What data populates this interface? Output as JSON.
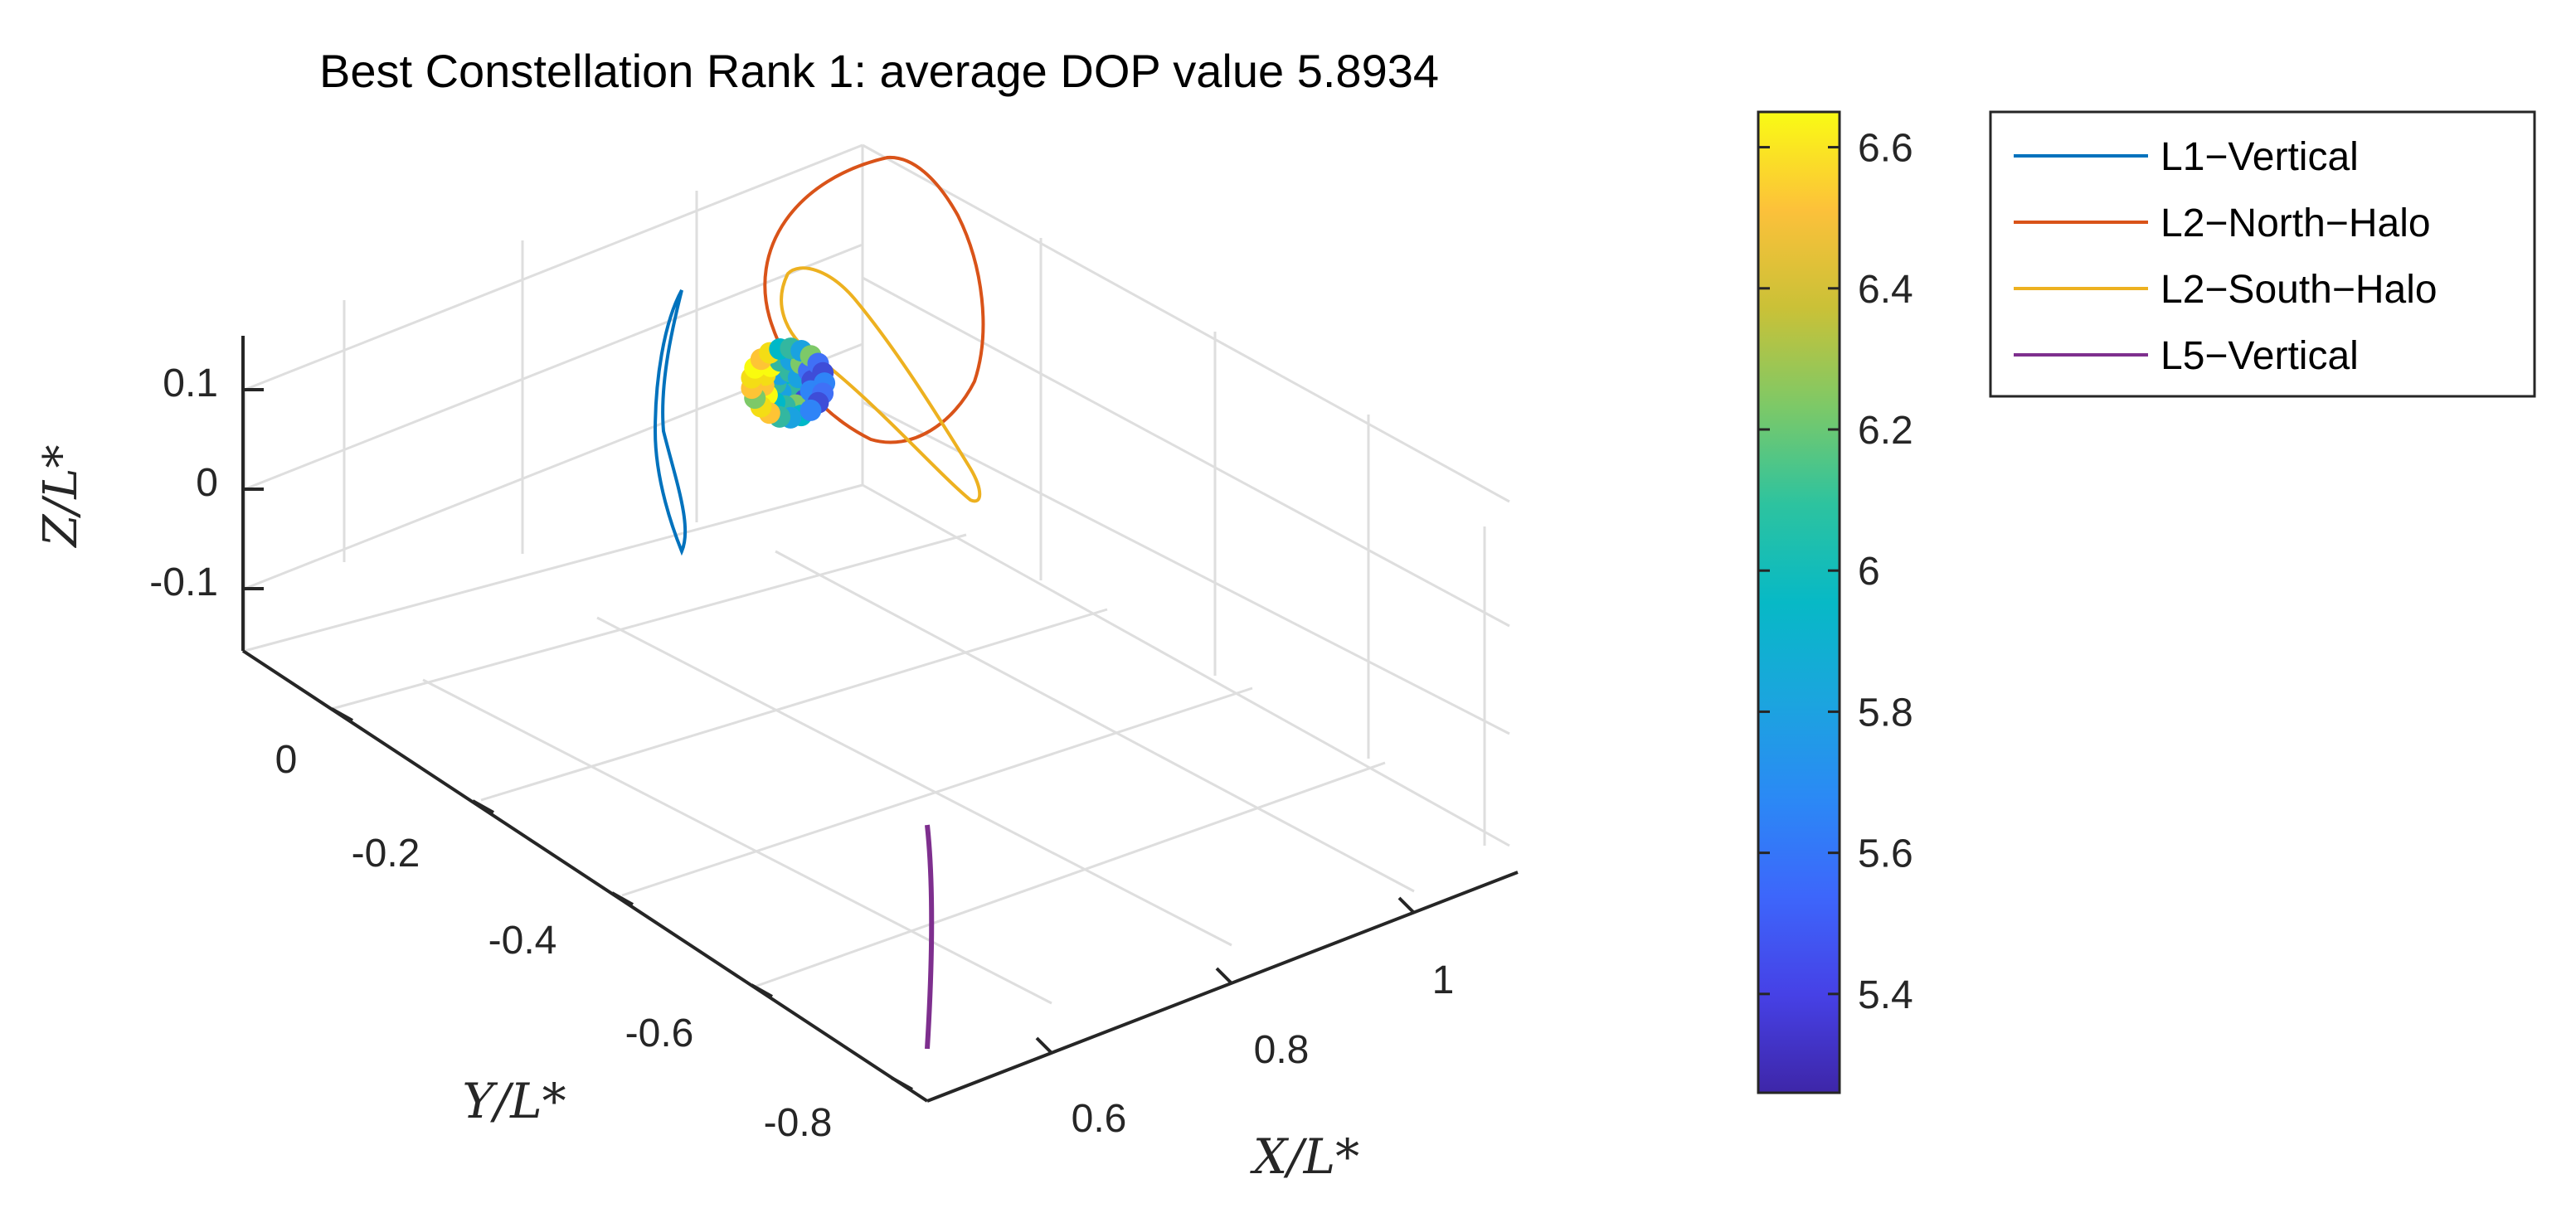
{
  "chart_data": {
    "type": "scatter",
    "title": "Best Constellation Rank 1: average DOP value 5.8934",
    "xlabel": "X/L*",
    "ylabel": "Y/L*",
    "zlabel": "Z/L*",
    "x_ticks": [
      "0.6",
      "0.8",
      "1"
    ],
    "y_ticks": [
      "0",
      "-0.2",
      "-0.4",
      "-0.6",
      "-0.8"
    ],
    "z_ticks": [
      "0.1",
      "0",
      "-0.1"
    ],
    "grid": true,
    "colorbar": {
      "ticks": [
        "6.6",
        "6.4",
        "6.2",
        "6",
        "5.8",
        "5.6",
        "5.4"
      ],
      "range": [
        5.26,
        6.65
      ],
      "colormap": "parula"
    },
    "legend": {
      "placement": "top-right",
      "entries": [
        {
          "name": "L1−Vertical",
          "color": "#0072BD"
        },
        {
          "name": "L2−North−Halo",
          "color": "#D95319"
        },
        {
          "name": "L2−South−Halo",
          "color": "#EDB120"
        },
        {
          "name": "L5−Vertical",
          "color": "#7E2F8E"
        }
      ]
    },
    "cluster_colors": [
      "#F9FB0E",
      "#FEC435",
      "#F4DD15",
      "#33B7A0",
      "#1AA2E0",
      "#2F84F7",
      "#4070F6",
      "#3E4DD8",
      "#7DC968",
      "#00B8C8"
    ]
  }
}
